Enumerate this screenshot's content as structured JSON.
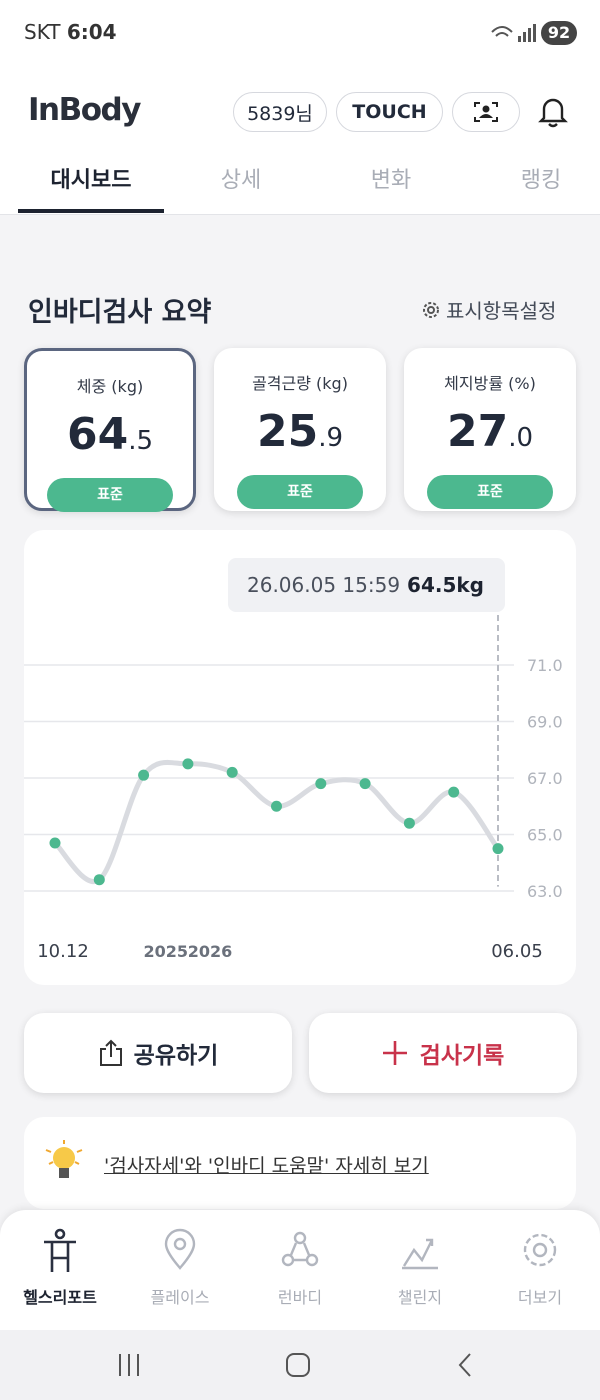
{
  "status_bar": {
    "carrier": "SKT",
    "time": "6:04",
    "battery": "92"
  },
  "header": {
    "logo": "InBody",
    "user": "5839님",
    "touch": "TOUCH"
  },
  "tabs": [
    "대시보드",
    "상세",
    "변화",
    "랭킹"
  ],
  "summary": {
    "title": "인바디검사 요약",
    "settings": "표시항목설정"
  },
  "cards": [
    {
      "label": "체중 (kg)",
      "value": "64.5",
      "status": "표준"
    },
    {
      "label": "골격근량 (kg)",
      "value": "25.9",
      "status": "표준"
    },
    {
      "label": "체지방률 (%)",
      "value": "27.0",
      "status": "표준"
    }
  ],
  "chart_data": {
    "type": "line",
    "tooltip": {
      "time": "26.06.05 15:59",
      "value": "64.5kg"
    },
    "categories": [
      "10.12",
      null,
      null,
      null,
      null,
      null,
      null,
      null,
      null,
      null,
      "06.05"
    ],
    "year_labels": [
      "2025",
      "2026"
    ],
    "values": [
      64.7,
      63.4,
      67.1,
      67.5,
      67.2,
      66.0,
      66.8,
      66.8,
      65.4,
      66.5,
      64.5
    ],
    "color": "#4cb88f",
    "line_color": "#d9dbe0",
    "ylim": [
      63,
      71
    ],
    "yticks": [
      {
        "value": 71,
        "label": "71.0"
      },
      {
        "value": 69,
        "label": "69.0"
      },
      {
        "value": 67,
        "label": "67.0"
      },
      {
        "value": 65,
        "label": "65.0"
      },
      {
        "value": 63,
        "label": "63.0"
      }
    ],
    "grid": true
  },
  "actions": {
    "share": "공유하기",
    "record": "검사기록"
  },
  "tip": "'검사자세'와 '인바디 도움말' 자세히 보기",
  "nav": [
    "헬스리포트",
    "플레이스",
    "런바디",
    "챌린지",
    "더보기"
  ]
}
